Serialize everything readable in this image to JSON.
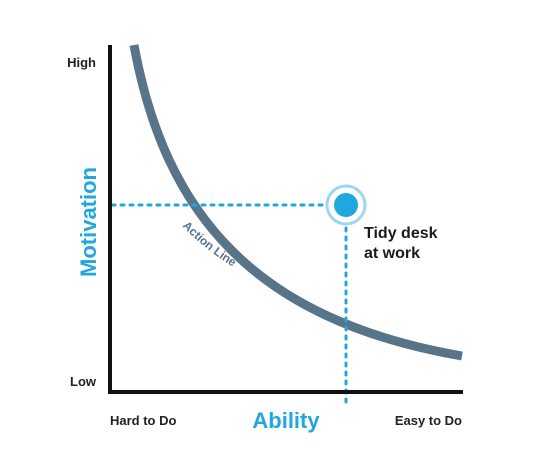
{
  "colors": {
    "accent": "#1fa7de",
    "curve": "#587488",
    "axis": "#111111",
    "text": "#1a1a1a"
  },
  "axes": {
    "y_title": "Motivation",
    "y_high": "High",
    "y_low": "Low",
    "x_title": "Ability",
    "x_low": "Hard to Do",
    "x_high": "Easy to Do"
  },
  "curve": {
    "label": "Action Line"
  },
  "point": {
    "label_line1": "Tidy desk",
    "label_line2": "at work"
  }
}
